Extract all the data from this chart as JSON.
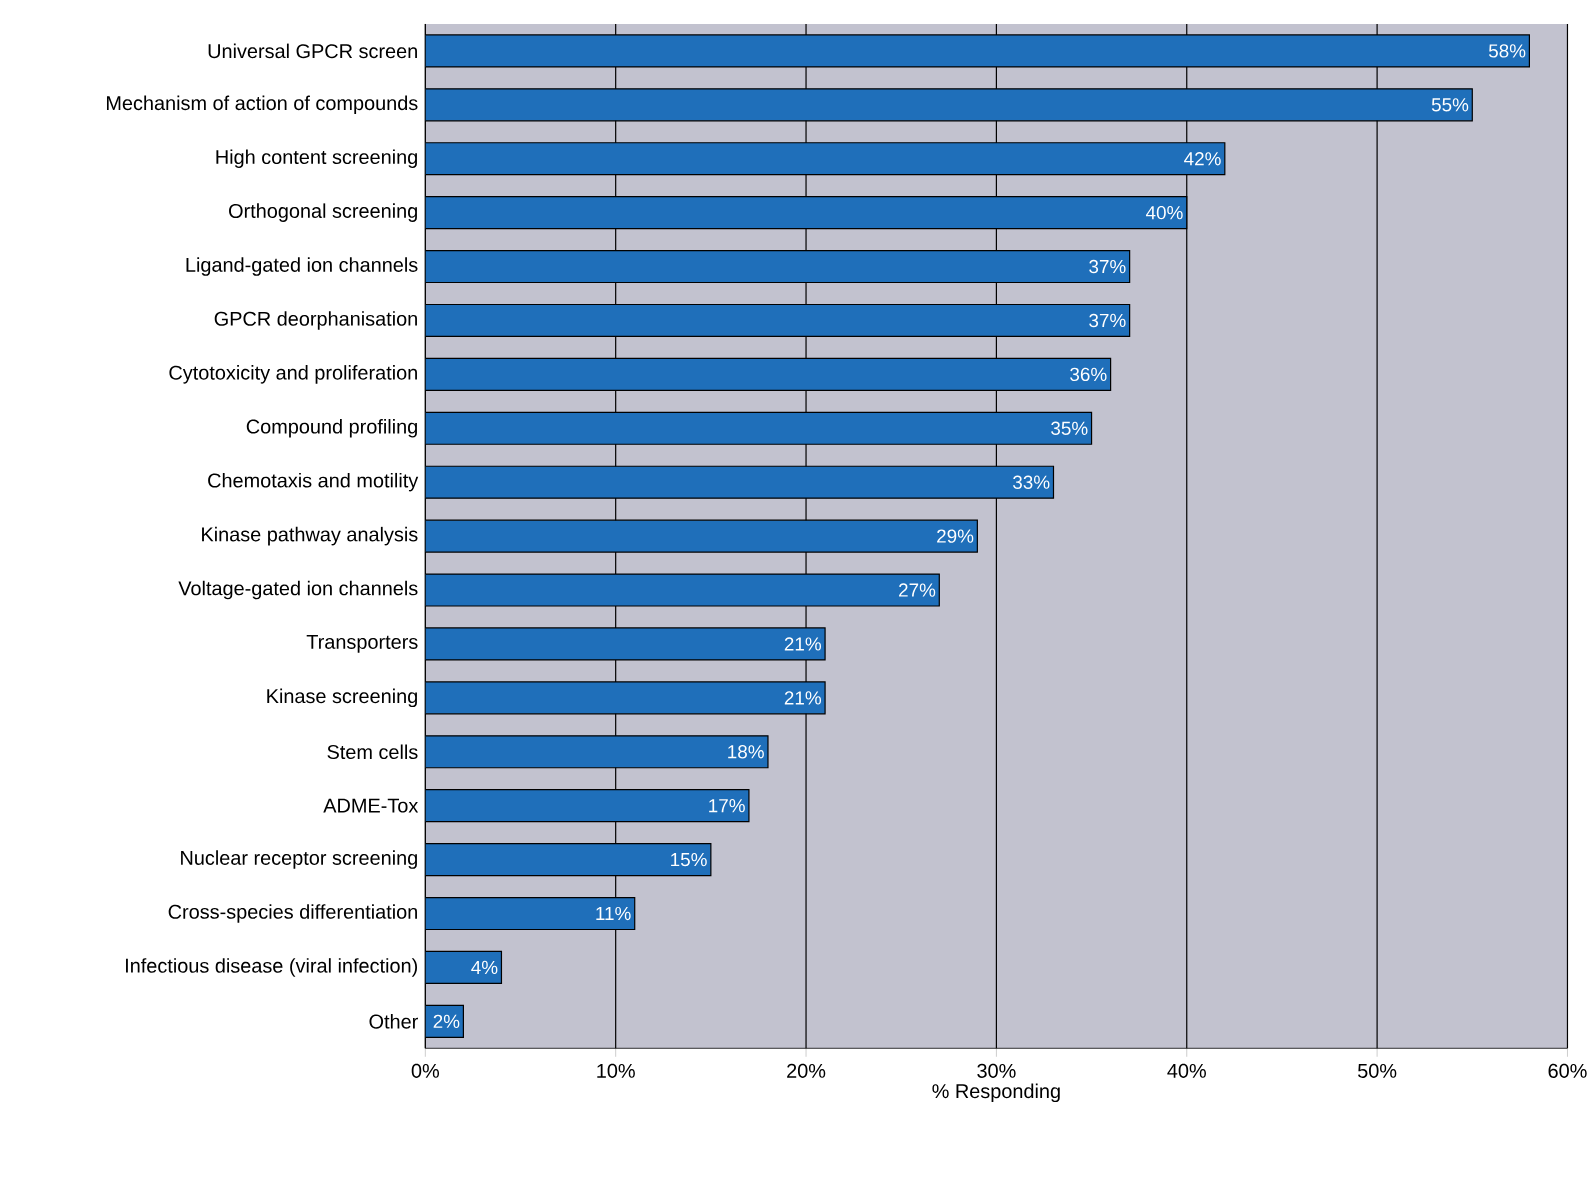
{
  "chart_data": {
    "type": "bar",
    "orientation": "horizontal",
    "xlabel": "% Responding",
    "categories": [
      "Universal GPCR screen",
      "Mechanism of action of compounds",
      "High content screening",
      "Orthogonal screening",
      "Ligand-gated ion channels",
      "GPCR deorphanisation",
      "Cytotoxicity and proliferation",
      "Compound profiling",
      "Chemotaxis and motility",
      "Kinase pathway analysis",
      "Voltage-gated ion channels",
      "Transporters",
      "Kinase screening",
      "Stem cells",
      "ADME-Tox",
      "Nuclear receptor screening",
      "Cross-species differentiation",
      "Infectious disease (viral infection)",
      "Other"
    ],
    "values": [
      58,
      55,
      42,
      40,
      37,
      37,
      36,
      35,
      33,
      29,
      27,
      21,
      21,
      18,
      17,
      15,
      11,
      4,
      2
    ],
    "value_labels": [
      "58%",
      "55%",
      "42%",
      "40%",
      "37%",
      "37%",
      "36%",
      "35%",
      "33%",
      "29%",
      "27%",
      "21%",
      "21%",
      "18%",
      "17%",
      "15%",
      "11%",
      "4%",
      "2%"
    ],
    "color": "#1f6fba",
    "xlim": [
      0,
      60
    ],
    "xticks": [
      {
        "value": 0,
        "label": "0%"
      },
      {
        "value": 10,
        "label": "10%"
      },
      {
        "value": 20,
        "label": "20%"
      },
      {
        "value": 30,
        "label": "30%"
      },
      {
        "value": 40,
        "label": "40%"
      },
      {
        "value": 50,
        "label": "50%"
      },
      {
        "value": 60,
        "label": "60%"
      }
    ],
    "grid": "x"
  }
}
